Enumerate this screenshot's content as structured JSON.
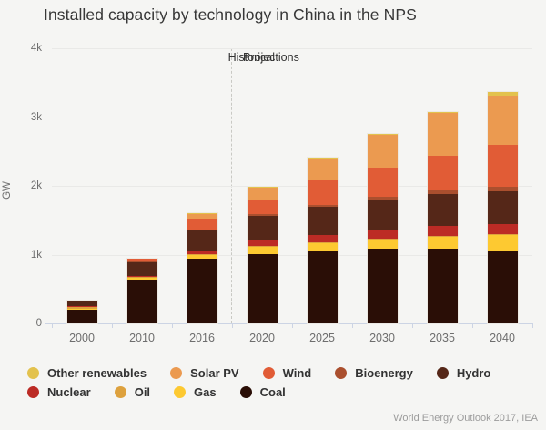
{
  "title": "Installed capacity by technology in China in the NPS",
  "annotations": {
    "historical": "Historical",
    "projections": "Projections"
  },
  "footer": "World Energy Outlook 2017, IEA",
  "colors": {
    "background": "#f5f5f3",
    "grid": "#e9e9e7",
    "axis": "#ccd4e4",
    "divider": "#c9c9c4"
  },
  "chart_data": {
    "type": "bar",
    "stacked": true,
    "title": "Installed capacity by technology in China in the NPS",
    "xlabel": "",
    "ylabel": "GW",
    "ylim": [
      0,
      4000
    ],
    "grid": true,
    "legend_position": "bottom",
    "yticks": [
      {
        "value": 0,
        "label": "0"
      },
      {
        "value": 1000,
        "label": "1k"
      },
      {
        "value": 2000,
        "label": "2k"
      },
      {
        "value": 3000,
        "label": "3k"
      },
      {
        "value": 4000,
        "label": "4k"
      }
    ],
    "categories": [
      "2000",
      "2010",
      "2016",
      "2020",
      "2025",
      "2030",
      "2035",
      "2040"
    ],
    "divider_after_category": "2016",
    "series": [
      {
        "name": "Coal",
        "color": "#2a0e06",
        "values": [
          210,
          630,
          935,
          1010,
          1045,
          1080,
          1080,
          1060
        ]
      },
      {
        "name": "Gas",
        "color": "#fdc931",
        "values": [
          5,
          30,
          65,
          110,
          130,
          150,
          190,
          230
        ]
      },
      {
        "name": "Oil",
        "color": "#dda13d",
        "values": [
          35,
          15,
          10,
          8,
          6,
          5,
          4,
          3
        ]
      },
      {
        "name": "Nuclear",
        "color": "#bc2b25",
        "values": [
          2,
          10,
          40,
          85,
          110,
          115,
          140,
          150
        ]
      },
      {
        "name": "Hydro",
        "color": "#552718",
        "values": [
          80,
          215,
          305,
          355,
          405,
          445,
          465,
          480
        ]
      },
      {
        "name": "Bioenergy",
        "color": "#aa4f2e",
        "values": [
          0,
          5,
          13,
          20,
          30,
          40,
          55,
          65
        ]
      },
      {
        "name": "Wind",
        "color": "#e15c36",
        "values": [
          0,
          40,
          155,
          220,
          350,
          430,
          500,
          605
        ]
      },
      {
        "name": "Solar PV",
        "color": "#eb9a50",
        "values": [
          0,
          1,
          78,
          180,
          330,
          480,
          620,
          725
        ]
      },
      {
        "name": "Other renewables",
        "color": "#e3c24d",
        "values": [
          0,
          0,
          2,
          5,
          10,
          15,
          20,
          40
        ]
      }
    ],
    "legend_rows": [
      [
        "Other renewables",
        "Solar PV",
        "Wind",
        "Bioenergy",
        "Hydro"
      ],
      [
        "Nuclear",
        "Oil",
        "Gas",
        "Coal"
      ]
    ]
  }
}
